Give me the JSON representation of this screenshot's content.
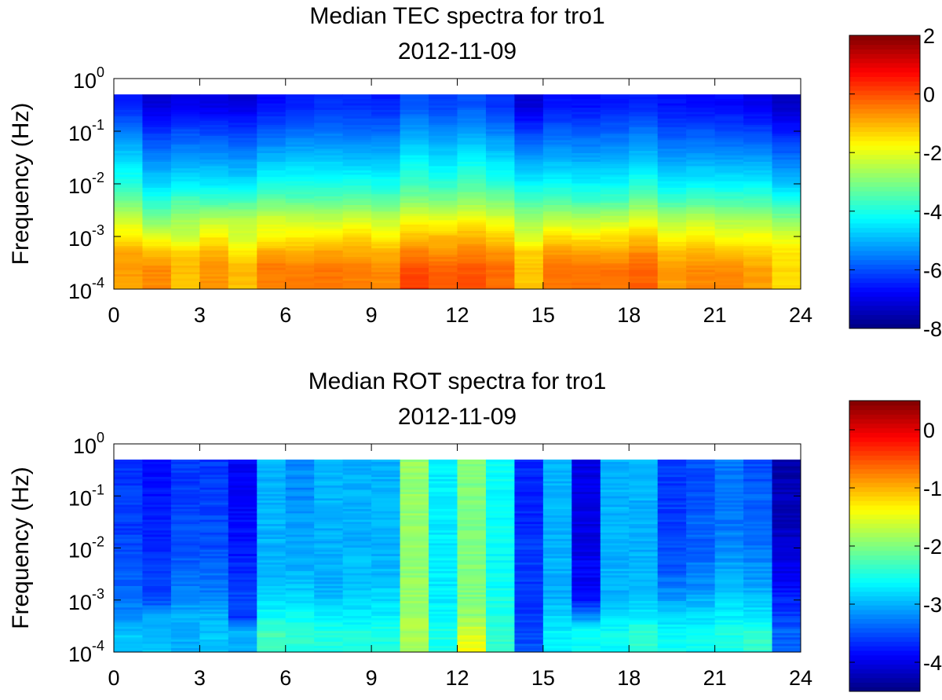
{
  "chart_data": [
    {
      "type": "heatmap",
      "title": "Median TEC spectra for tro1",
      "subtitle": "2012-11-09",
      "xlabel": "",
      "ylabel": "Frequency (Hz)",
      "xlim": [
        0,
        24
      ],
      "ylim": [
        0.0001,
        1
      ],
      "yscale": "log",
      "x_ticks": [
        0,
        3,
        6,
        9,
        12,
        15,
        18,
        21,
        24
      ],
      "y_ticks": [
        {
          "base": "10",
          "exp": "-4"
        },
        {
          "base": "10",
          "exp": "-3"
        },
        {
          "base": "10",
          "exp": "-2"
        },
        {
          "base": "10",
          "exp": "-1"
        },
        {
          "base": "10",
          "exp": "0"
        }
      ],
      "colorbar": {
        "range": [
          -8,
          2
        ],
        "ticks": [
          2,
          0,
          -2,
          -4,
          -6,
          -8
        ]
      },
      "hours": [
        0,
        1,
        2,
        3,
        4,
        5,
        6,
        7,
        8,
        9,
        10,
        11,
        12,
        13,
        14,
        15,
        16,
        17,
        18,
        19,
        20,
        21,
        22,
        23
      ],
      "freq_range": [
        0.0001,
        0.5
      ],
      "profile_freqs": [
        0.0001,
        0.00025,
        0.0005,
        0.001,
        0.002,
        0.005,
        0.01,
        0.03,
        0.1,
        0.3,
        0.5
      ],
      "hour_profiles": [
        [
          -0.8,
          -0.8,
          -0.9,
          -1.6,
          -2.2,
          -3.2,
          -3.9,
          -4.6,
          -5.5,
          -6.4,
          -6.5
        ],
        [
          -0.6,
          -0.6,
          -1.1,
          -2.0,
          -3.0,
          -3.9,
          -4.6,
          -5.4,
          -6.3,
          -7.1,
          -7.2
        ],
        [
          -1.2,
          -1.1,
          -1.3,
          -2.4,
          -2.6,
          -3.5,
          -4.4,
          -5.2,
          -6.0,
          -6.9,
          -7.0
        ],
        [
          -0.7,
          -0.7,
          -1.0,
          -1.6,
          -2.4,
          -3.7,
          -4.4,
          -5.2,
          -6.1,
          -7.0,
          -7.0
        ],
        [
          -1.2,
          -1.0,
          -1.6,
          -2.2,
          -2.4,
          -3.6,
          -4.5,
          -5.3,
          -6.2,
          -7.0,
          -7.2
        ],
        [
          -0.6,
          -0.4,
          -0.9,
          -1.7,
          -2.1,
          -3.3,
          -4.0,
          -4.9,
          -5.9,
          -6.6,
          -6.7
        ],
        [
          -0.5,
          -0.5,
          -1.0,
          -1.6,
          -2.2,
          -3.4,
          -4.0,
          -4.8,
          -5.7,
          -6.4,
          -6.5
        ],
        [
          -0.4,
          -0.4,
          -0.8,
          -1.5,
          -2.3,
          -3.4,
          -4.0,
          -4.8,
          -5.6,
          -6.3,
          -6.3
        ],
        [
          -0.5,
          -0.5,
          -0.9,
          -1.3,
          -2.1,
          -3.3,
          -4.0,
          -4.9,
          -5.7,
          -6.3,
          -6.4
        ],
        [
          -0.6,
          -0.6,
          -1.0,
          -1.7,
          -2.3,
          -3.4,
          -4.1,
          -4.9,
          -5.7,
          -6.4,
          -6.5
        ],
        [
          0.2,
          0.0,
          -0.5,
          -1.1,
          -1.8,
          -3.0,
          -3.6,
          -4.3,
          -5.2,
          -5.9,
          -6.0
        ],
        [
          -0.2,
          -0.2,
          -0.7,
          -1.1,
          -1.9,
          -3.1,
          -3.8,
          -4.6,
          -5.4,
          -6.1,
          -6.2
        ],
        [
          0.0,
          -0.1,
          -0.5,
          -1.0,
          -1.7,
          -2.9,
          -3.5,
          -4.3,
          -5.2,
          -5.9,
          -6.0
        ],
        [
          -0.3,
          -0.3,
          -0.7,
          -1.3,
          -2.0,
          -3.1,
          -3.8,
          -4.6,
          -5.5,
          -6.3,
          -6.3
        ],
        [
          -1.2,
          -1.2,
          -1.3,
          -2.2,
          -2.6,
          -3.6,
          -4.3,
          -5.2,
          -6.2,
          -7.1,
          -7.2
        ],
        [
          -0.4,
          -0.4,
          -0.8,
          -1.4,
          -2.3,
          -3.5,
          -4.2,
          -5.0,
          -5.8,
          -6.6,
          -6.6
        ],
        [
          -0.4,
          -0.4,
          -0.8,
          -1.6,
          -2.4,
          -3.7,
          -4.3,
          -5.1,
          -5.9,
          -6.6,
          -6.6
        ],
        [
          -0.4,
          -0.4,
          -0.9,
          -1.5,
          -2.3,
          -3.6,
          -4.3,
          -5.0,
          -5.8,
          -6.5,
          -6.6
        ],
        [
          -0.2,
          -0.2,
          -0.6,
          -1.2,
          -2.0,
          -3.2,
          -3.9,
          -4.8,
          -5.6,
          -6.4,
          -6.5
        ],
        [
          -0.8,
          -0.8,
          -1.1,
          -1.8,
          -2.5,
          -3.7,
          -4.4,
          -5.2,
          -6.0,
          -6.6,
          -6.6
        ],
        [
          -0.6,
          -0.6,
          -1.0,
          -1.6,
          -2.3,
          -3.5,
          -4.3,
          -5.1,
          -5.9,
          -6.7,
          -6.7
        ],
        [
          -0.6,
          -0.6,
          -1.2,
          -1.9,
          -2.5,
          -3.6,
          -4.3,
          -5.2,
          -6.0,
          -6.7,
          -6.7
        ],
        [
          -0.8,
          -0.8,
          -1.3,
          -1.8,
          -2.5,
          -3.6,
          -4.3,
          -5.2,
          -6.1,
          -6.9,
          -7.0
        ],
        [
          -1.4,
          -1.4,
          -1.5,
          -2.1,
          -2.9,
          -4.0,
          -4.8,
          -5.6,
          -6.5,
          -7.3,
          -7.4
        ]
      ]
    },
    {
      "type": "heatmap",
      "title": "Median ROT spectra for tro1",
      "subtitle": "2012-11-09",
      "xlabel": "",
      "ylabel": "Frequency (Hz)",
      "xlim": [
        0,
        24
      ],
      "ylim": [
        0.0001,
        1
      ],
      "yscale": "log",
      "x_ticks": [
        0,
        3,
        6,
        9,
        12,
        15,
        18,
        21,
        24
      ],
      "y_ticks": [
        {
          "base": "10",
          "exp": "-4"
        },
        {
          "base": "10",
          "exp": "-3"
        },
        {
          "base": "10",
          "exp": "-2"
        },
        {
          "base": "10",
          "exp": "-1"
        },
        {
          "base": "10",
          "exp": "0"
        }
      ],
      "colorbar": {
        "range": [
          -4.5,
          0.5
        ],
        "ticks": [
          0,
          -1,
          -2,
          -3,
          -4
        ]
      },
      "hours": [
        0,
        1,
        2,
        3,
        4,
        5,
        6,
        7,
        8,
        9,
        10,
        11,
        12,
        13,
        14,
        15,
        16,
        17,
        18,
        19,
        20,
        21,
        22,
        23
      ],
      "freq_range": [
        0.0001,
        0.5
      ],
      "profile_freqs": [
        0.0001,
        0.00025,
        0.0005,
        0.001,
        0.002,
        0.005,
        0.01,
        0.03,
        0.1,
        0.3,
        0.5
      ],
      "hour_profiles": [
        [
          -2.9,
          -2.9,
          -3.2,
          -3.3,
          -3.4,
          -3.5,
          -3.5,
          -3.6,
          -3.6,
          -3.6,
          -3.6
        ],
        [
          -2.9,
          -2.9,
          -3.1,
          -3.5,
          -3.6,
          -3.6,
          -3.7,
          -3.7,
          -3.8,
          -3.8,
          -3.8
        ],
        [
          -3.0,
          -3.0,
          -3.0,
          -3.2,
          -3.3,
          -3.4,
          -3.5,
          -3.5,
          -3.6,
          -3.6,
          -3.6
        ],
        [
          -2.9,
          -2.9,
          -3.0,
          -3.2,
          -3.3,
          -3.4,
          -3.5,
          -3.5,
          -3.6,
          -3.6,
          -3.6
        ],
        [
          -3.0,
          -3.0,
          -3.7,
          -3.5,
          -3.6,
          -3.7,
          -3.8,
          -3.8,
          -3.9,
          -3.9,
          -3.9
        ],
        [
          -2.3,
          -2.3,
          -2.6,
          -2.8,
          -2.9,
          -3.0,
          -3.0,
          -3.0,
          -3.0,
          -3.0,
          -3.0
        ],
        [
          -2.4,
          -2.4,
          -2.6,
          -2.8,
          -2.9,
          -3.0,
          -3.1,
          -3.1,
          -3.2,
          -3.2,
          -3.2
        ],
        [
          -2.5,
          -2.5,
          -2.7,
          -2.9,
          -3.0,
          -3.0,
          -3.0,
          -3.0,
          -3.0,
          -3.0,
          -3.0
        ],
        [
          -2.5,
          -2.5,
          -2.7,
          -2.8,
          -2.9,
          -2.9,
          -3.0,
          -3.0,
          -3.0,
          -3.0,
          -3.0
        ],
        [
          -2.5,
          -2.5,
          -2.7,
          -2.8,
          -2.9,
          -3.0,
          -3.0,
          -3.0,
          -3.0,
          -3.0,
          -3.0
        ],
        [
          -1.8,
          -1.8,
          -1.8,
          -1.9,
          -1.9,
          -1.9,
          -1.9,
          -1.9,
          -1.9,
          -1.9,
          -1.9
        ],
        [
          -2.5,
          -2.5,
          -2.6,
          -2.7,
          -2.7,
          -2.7,
          -2.7,
          -2.7,
          -2.7,
          -2.7,
          -2.7
        ],
        [
          -1.4,
          -1.6,
          -1.9,
          -2.0,
          -2.0,
          -2.0,
          -2.0,
          -2.0,
          -2.0,
          -2.0,
          -2.0
        ],
        [
          -2.4,
          -2.4,
          -2.5,
          -2.5,
          -2.6,
          -2.6,
          -2.6,
          -2.6,
          -2.6,
          -2.6,
          -2.6
        ],
        [
          -3.5,
          -3.5,
          -3.6,
          -3.6,
          -3.6,
          -3.6,
          -3.6,
          -3.7,
          -3.7,
          -3.7,
          -3.7
        ],
        [
          -2.7,
          -2.7,
          -2.8,
          -3.0,
          -3.0,
          -3.0,
          -3.0,
          -3.0,
          -3.0,
          -3.0,
          -3.0
        ],
        [
          -2.6,
          -2.6,
          -3.2,
          -3.8,
          -3.9,
          -3.9,
          -4.0,
          -4.0,
          -4.0,
          -4.0,
          -4.0
        ],
        [
          -2.6,
          -2.6,
          -2.8,
          -3.0,
          -3.0,
          -3.0,
          -3.0,
          -3.0,
          -3.0,
          -3.0,
          -3.0
        ],
        [
          -2.4,
          -2.4,
          -2.7,
          -2.9,
          -3.0,
          -3.0,
          -3.0,
          -3.0,
          -3.0,
          -3.0,
          -3.0
        ],
        [
          -2.6,
          -2.6,
          -2.8,
          -3.1,
          -3.3,
          -3.5,
          -3.5,
          -3.6,
          -3.6,
          -3.6,
          -3.6
        ],
        [
          -2.6,
          -2.6,
          -2.8,
          -3.0,
          -3.2,
          -3.3,
          -3.4,
          -3.4,
          -3.5,
          -3.5,
          -3.5
        ],
        [
          -2.5,
          -2.5,
          -2.7,
          -2.8,
          -3.0,
          -3.1,
          -3.2,
          -3.3,
          -3.3,
          -3.3,
          -3.3
        ],
        [
          -2.4,
          -2.4,
          -2.7,
          -2.9,
          -3.1,
          -3.2,
          -3.3,
          -3.4,
          -3.4,
          -3.5,
          -3.5
        ],
        [
          -3.4,
          -3.4,
          -3.6,
          -3.7,
          -3.9,
          -4.0,
          -4.1,
          -4.2,
          -4.2,
          -4.3,
          -4.3
        ]
      ]
    }
  ]
}
